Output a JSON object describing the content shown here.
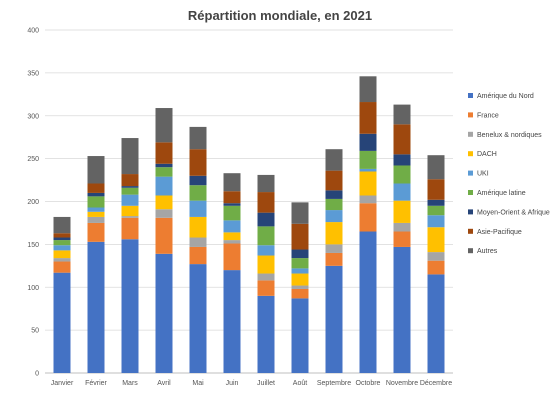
{
  "chart_data": {
    "type": "bar",
    "stacked": true,
    "title": "Répartition mondiale, en 2021",
    "xlabel": "",
    "ylabel": "",
    "ylim": [
      0,
      400
    ],
    "yticks": [
      0,
      50,
      100,
      150,
      200,
      250,
      300,
      350,
      400
    ],
    "grid": true,
    "legend_position": "right",
    "categories": [
      "Janvier",
      "Février",
      "Mars",
      "Avril",
      "Mai",
      "Juin",
      "Juillet",
      "Août",
      "Septembre",
      "Octobre",
      "Novembre",
      "Décembre"
    ],
    "series": [
      {
        "name": "Amérique du Nord",
        "color": "#4472C4",
        "values": [
          117,
          153,
          156,
          139,
          127,
          120,
          90,
          87,
          125,
          165,
          147,
          115
        ]
      },
      {
        "name": "France",
        "color": "#ED7D31",
        "values": [
          13,
          22,
          25,
          42,
          20,
          31,
          18,
          11,
          15,
          33,
          18,
          16
        ]
      },
      {
        "name": "Benelux & nordiques",
        "color": "#A5A5A5",
        "values": [
          4,
          7,
          2,
          10,
          11,
          4,
          8,
          4,
          10,
          9,
          10,
          10
        ]
      },
      {
        "name": "DACH",
        "color": "#FFC000",
        "values": [
          9,
          6,
          12,
          16,
          24,
          9,
          21,
          14,
          26,
          28,
          26,
          29
        ]
      },
      {
        "name": "UKI",
        "color": "#5B9BD5",
        "values": [
          6,
          5,
          13,
          22,
          19,
          14,
          12,
          6,
          14,
          3,
          20,
          14
        ]
      },
      {
        "name": "Amérique latine",
        "color": "#70AD47",
        "values": [
          6,
          13,
          8,
          11,
          18,
          17,
          22,
          12,
          13,
          21,
          21,
          11
        ]
      },
      {
        "name": "Moyen-Orient & Afrique",
        "color": "#264478",
        "values": [
          3,
          4,
          2,
          4,
          11,
          3,
          16,
          10,
          10,
          20,
          13,
          7
        ]
      },
      {
        "name": "Asie-Pacifique",
        "color": "#9E480E",
        "values": [
          5,
          11,
          14,
          25,
          31,
          14,
          24,
          30,
          23,
          37,
          35,
          24
        ]
      },
      {
        "name": "Autres",
        "color": "#636363",
        "values": [
          19,
          32,
          42,
          40,
          26,
          21,
          20,
          25,
          25,
          30,
          23,
          28
        ]
      }
    ]
  }
}
